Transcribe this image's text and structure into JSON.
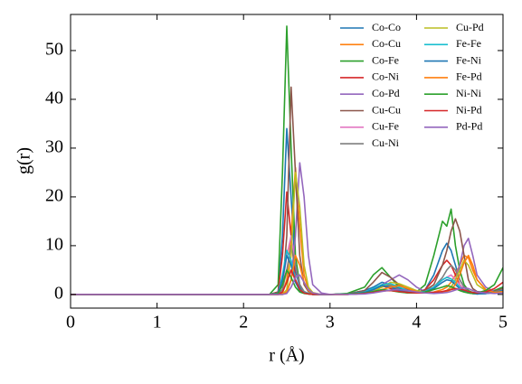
{
  "chart_data": {
    "type": "line",
    "xlabel": "r (Å)",
    "ylabel": "g(r)",
    "xlim": [
      0,
      5
    ],
    "ylim": [
      -2.8,
      57.4
    ],
    "xticks": [
      0,
      1,
      2,
      3,
      4,
      5
    ],
    "yticks": [
      0,
      10,
      20,
      30,
      40,
      50
    ],
    "legend": "upper right",
    "x": [
      0,
      2.3,
      2.4,
      2.45,
      2.5,
      2.55,
      2.6,
      2.65,
      2.7,
      2.75,
      2.8,
      2.9,
      3.0,
      3.2,
      3.4,
      3.5,
      3.6,
      3.7,
      3.8,
      3.9,
      4.0,
      4.1,
      4.2,
      4.3,
      4.35,
      4.4,
      4.45,
      4.5,
      4.55,
      4.6,
      4.65,
      4.7,
      4.8,
      4.9,
      5.0
    ],
    "series": [
      {
        "name": "Co-Co",
        "color": "#1f77b4",
        "values": [
          0,
          0,
          0.5,
          12,
          34,
          20,
          5,
          1.5,
          0.5,
          0.2,
          0.1,
          0,
          0,
          0.1,
          0.8,
          1.5,
          2.5,
          2,
          1.2,
          0.6,
          0.4,
          1,
          4,
          9,
          10.5,
          9,
          6,
          3,
          1.5,
          0.7,
          0.3,
          0.2,
          0.3,
          0.8,
          1.5
        ]
      },
      {
        "name": "Co-Cu",
        "color": "#ff7f0e",
        "values": [
          0,
          0,
          0,
          0.2,
          3,
          12,
          26,
          14,
          4,
          1,
          0.3,
          0,
          0,
          0,
          0.3,
          0.8,
          1.5,
          2,
          1.8,
          1.2,
          0.6,
          0.4,
          0.5,
          1,
          1.5,
          2.5,
          4,
          6,
          8,
          7.5,
          5,
          3,
          1,
          0.5,
          1
        ]
      },
      {
        "name": "Co-Fe",
        "color": "#2ca02c",
        "values": [
          0,
          0,
          2,
          25,
          55,
          30,
          8,
          2,
          0.5,
          0.2,
          0.1,
          0,
          0,
          0.2,
          1.5,
          4,
          5.5,
          3.5,
          1.5,
          0.6,
          0.5,
          2,
          8,
          15,
          14,
          17.5,
          10,
          5,
          2,
          0.8,
          0.4,
          0.3,
          0.3,
          0.8,
          1.5
        ]
      },
      {
        "name": "Co-Ni",
        "color": "#d62728",
        "values": [
          0,
          0,
          0.5,
          8,
          21,
          12,
          3,
          0.8,
          0.3,
          0.1,
          0,
          0,
          0,
          0.1,
          0.5,
          1,
          1.8,
          1.2,
          0.6,
          0.3,
          0.3,
          1,
          3,
          6,
          7,
          6,
          4,
          2,
          1,
          0.4,
          0.2,
          0.1,
          0.2,
          0.5,
          1
        ]
      },
      {
        "name": "Co-Pd",
        "color": "#9467bd",
        "values": [
          0,
          0,
          0,
          0,
          0.5,
          3,
          12,
          27,
          20,
          8,
          2,
          0.3,
          0,
          0,
          0.2,
          0.8,
          2,
          3,
          4,
          3,
          1.5,
          0.6,
          0.4,
          0.5,
          0.8,
          1.5,
          3,
          6,
          10,
          11.5,
          8,
          4,
          1.5,
          0.6,
          0.8
        ]
      },
      {
        "name": "Cu-Cu",
        "color": "#8c564b",
        "values": [
          0,
          0,
          0,
          1,
          12,
          42.5,
          25,
          8,
          2,
          0.6,
          0.2,
          0,
          0,
          0.1,
          0.8,
          2.5,
          4.5,
          3.5,
          2,
          1,
          0.6,
          0.8,
          2,
          6,
          9,
          13,
          15.5,
          13,
          8,
          3,
          1.2,
          0.6,
          0.4,
          0.6,
          1.2
        ]
      },
      {
        "name": "Cu-Fe",
        "color": "#e377c2",
        "values": [
          0,
          0,
          0,
          2,
          8,
          12,
          6,
          2,
          0.6,
          0.2,
          0,
          0,
          0,
          0.1,
          0.4,
          1,
          1.8,
          1.5,
          0.8,
          0.4,
          0.3,
          0.6,
          1.5,
          3,
          3.5,
          4,
          3,
          2,
          1,
          0.5,
          0.2,
          0.1,
          0.2,
          0.4,
          0.8
        ]
      },
      {
        "name": "Cu-Ni",
        "color": "#7f7f7f",
        "values": [
          0,
          0,
          0,
          1,
          5,
          10,
          6,
          2,
          0.6,
          0.2,
          0,
          0,
          0,
          0.1,
          0.4,
          1,
          2,
          1.8,
          1,
          0.5,
          0.4,
          0.6,
          1.5,
          3.5,
          5,
          6,
          5,
          3,
          1.5,
          0.6,
          0.3,
          0.2,
          0.2,
          0.5,
          1
        ]
      },
      {
        "name": "Cu-Pd",
        "color": "#bcbd22",
        "values": [
          0,
          0,
          0,
          0,
          1,
          8,
          25,
          18,
          6,
          1.5,
          0.4,
          0,
          0,
          0,
          0.2,
          0.6,
          1.5,
          2.5,
          2.2,
          1.5,
          0.8,
          0.4,
          0.3,
          0.4,
          0.8,
          1.5,
          3,
          5,
          7,
          6,
          4,
          2,
          0.8,
          0.4,
          0.6
        ]
      },
      {
        "name": "Fe-Fe",
        "color": "#17becf",
        "values": [
          0,
          0,
          0.3,
          4,
          9,
          7,
          3,
          1,
          0.4,
          0.2,
          0,
          0,
          0,
          0.1,
          0.5,
          1.2,
          2,
          2.2,
          1.5,
          0.8,
          0.4,
          0.6,
          1.5,
          3,
          3.5,
          3.2,
          2.5,
          1.5,
          0.8,
          0.4,
          0.2,
          0.1,
          0.2,
          0.4,
          0.8
        ]
      },
      {
        "name": "Fe-Ni",
        "color": "#1f77b4",
        "values": [
          0,
          0,
          0.3,
          3,
          8,
          6,
          2.5,
          0.8,
          0.3,
          0.1,
          0,
          0,
          0,
          0.1,
          0.4,
          1,
          1.8,
          1.5,
          0.8,
          0.4,
          0.3,
          0.5,
          1.2,
          2.5,
          3,
          2.8,
          2,
          1.2,
          0.6,
          0.3,
          0.2,
          0.1,
          0.2,
          0.4,
          0.8
        ]
      },
      {
        "name": "Fe-Pd",
        "color": "#ff7f0e",
        "values": [
          0,
          0,
          0,
          0,
          0.5,
          3,
          8,
          6,
          2.5,
          0.8,
          0.2,
          0,
          0,
          0,
          0.2,
          0.5,
          1,
          1.5,
          1.8,
          1.2,
          0.6,
          0.3,
          0.3,
          0.4,
          0.6,
          1,
          2,
          4,
          6.5,
          8,
          6,
          3,
          1,
          0.4,
          0.6
        ]
      },
      {
        "name": "Ni-Ni",
        "color": "#2ca02c",
        "values": [
          0,
          0,
          0.2,
          2,
          5,
          3.5,
          1.5,
          0.5,
          0.2,
          0.1,
          0,
          0,
          0,
          0.1,
          0.3,
          0.6,
          1,
          0.8,
          0.5,
          0.3,
          0.3,
          0.5,
          1,
          1.5,
          1.8,
          1.6,
          1.2,
          0.8,
          0.5,
          0.3,
          0.2,
          0.3,
          0.8,
          2,
          5.5
        ]
      },
      {
        "name": "Ni-Pd",
        "color": "#d62728",
        "values": [
          0,
          0,
          0,
          0.5,
          2.5,
          5,
          3,
          1,
          0.3,
          0.1,
          0,
          0,
          0,
          0,
          0.2,
          0.4,
          0.7,
          0.8,
          0.6,
          0.4,
          0.3,
          0.3,
          0.4,
          0.6,
          0.8,
          1,
          1.2,
          1.1,
          0.9,
          0.6,
          0.4,
          0.3,
          0.5,
          1.2,
          2.5
        ]
      },
      {
        "name": "Pd-Pd",
        "color": "#9467bd",
        "values": [
          0,
          0,
          0,
          0,
          0.2,
          1.5,
          3.5,
          4,
          2.5,
          1,
          0.3,
          0,
          0,
          0,
          0.1,
          0.3,
          0.6,
          0.9,
          1,
          0.8,
          0.5,
          0.3,
          0.2,
          0.3,
          0.4,
          0.6,
          0.9,
          1.2,
          1.4,
          1.2,
          0.8,
          0.5,
          0.3,
          0.2,
          0.3
        ]
      }
    ]
  }
}
